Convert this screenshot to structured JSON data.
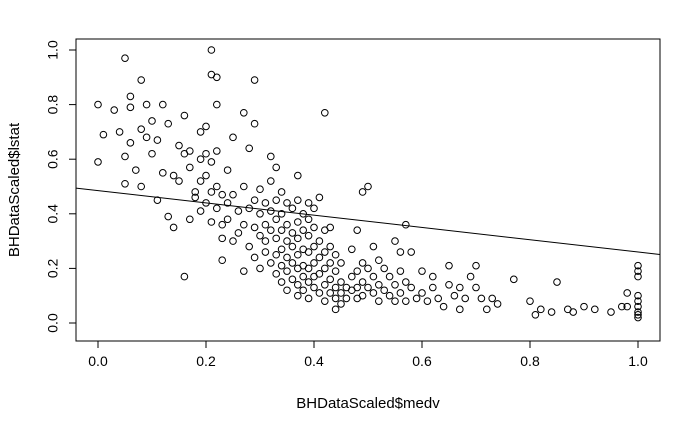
{
  "chart_data": {
    "type": "scatter",
    "title": "",
    "xlabel": "BHDataScaled$medv",
    "ylabel": "BHDataScaled$lstat",
    "xlim": [
      0.0,
      1.0
    ],
    "ylim": [
      0.0,
      1.0
    ],
    "x_ticks": [
      "0.0",
      "0.2",
      "0.4",
      "0.6",
      "0.8",
      "1.0"
    ],
    "y_ticks": [
      "0.0",
      "0.2",
      "0.4",
      "0.6",
      "0.8",
      "1.0"
    ],
    "grid": false,
    "legend": "none",
    "point_style": "open-circle",
    "point_color": "#000000",
    "line_color": "#000000",
    "regression_line": {
      "x": [
        0.0,
        1.0
      ],
      "y": [
        0.485,
        0.26
      ]
    },
    "points": [
      [
        0.0,
        0.8
      ],
      [
        0.0,
        0.59
      ],
      [
        0.01,
        0.69
      ],
      [
        0.03,
        0.78
      ],
      [
        0.04,
        0.7
      ],
      [
        0.05,
        0.97
      ],
      [
        0.05,
        0.51
      ],
      [
        0.05,
        0.61
      ],
      [
        0.06,
        0.83
      ],
      [
        0.06,
        0.79
      ],
      [
        0.06,
        0.66
      ],
      [
        0.07,
        0.56
      ],
      [
        0.08,
        0.89
      ],
      [
        0.08,
        0.71
      ],
      [
        0.08,
        0.5
      ],
      [
        0.09,
        0.68
      ],
      [
        0.09,
        0.8
      ],
      [
        0.1,
        0.74
      ],
      [
        0.1,
        0.62
      ],
      [
        0.11,
        0.45
      ],
      [
        0.11,
        0.67
      ],
      [
        0.12,
        0.8
      ],
      [
        0.12,
        0.55
      ],
      [
        0.13,
        0.39
      ],
      [
        0.13,
        0.73
      ],
      [
        0.14,
        0.54
      ],
      [
        0.14,
        0.35
      ],
      [
        0.15,
        0.65
      ],
      [
        0.15,
        0.52
      ],
      [
        0.16,
        0.76
      ],
      [
        0.16,
        0.62
      ],
      [
        0.16,
        0.17
      ],
      [
        0.17,
        0.63
      ],
      [
        0.17,
        0.38
      ],
      [
        0.17,
        0.57
      ],
      [
        0.18,
        0.48
      ],
      [
        0.18,
        0.46
      ],
      [
        0.19,
        0.52
      ],
      [
        0.19,
        0.6
      ],
      [
        0.19,
        0.7
      ],
      [
        0.19,
        0.41
      ],
      [
        0.2,
        0.62
      ],
      [
        0.2,
        0.54
      ],
      [
        0.2,
        0.72
      ],
      [
        0.2,
        0.44
      ],
      [
        0.21,
        1.0
      ],
      [
        0.21,
        0.91
      ],
      [
        0.21,
        0.59
      ],
      [
        0.21,
        0.48
      ],
      [
        0.21,
        0.37
      ],
      [
        0.22,
        0.9
      ],
      [
        0.22,
        0.8
      ],
      [
        0.22,
        0.63
      ],
      [
        0.22,
        0.5
      ],
      [
        0.22,
        0.42
      ],
      [
        0.23,
        0.47
      ],
      [
        0.23,
        0.36
      ],
      [
        0.23,
        0.31
      ],
      [
        0.23,
        0.23
      ],
      [
        0.24,
        0.56
      ],
      [
        0.24,
        0.44
      ],
      [
        0.24,
        0.38
      ],
      [
        0.25,
        0.68
      ],
      [
        0.25,
        0.47
      ],
      [
        0.25,
        0.3
      ],
      [
        0.26,
        0.41
      ],
      [
        0.26,
        0.33
      ],
      [
        0.27,
        0.77
      ],
      [
        0.27,
        0.5
      ],
      [
        0.27,
        0.36
      ],
      [
        0.27,
        0.19
      ],
      [
        0.28,
        0.64
      ],
      [
        0.28,
        0.42
      ],
      [
        0.28,
        0.28
      ],
      [
        0.29,
        0.89
      ],
      [
        0.29,
        0.73
      ],
      [
        0.29,
        0.45
      ],
      [
        0.29,
        0.35
      ],
      [
        0.29,
        0.24
      ],
      [
        0.3,
        0.49
      ],
      [
        0.3,
        0.4
      ],
      [
        0.3,
        0.32
      ],
      [
        0.3,
        0.2
      ],
      [
        0.31,
        0.44
      ],
      [
        0.31,
        0.36
      ],
      [
        0.31,
        0.3
      ],
      [
        0.31,
        0.26
      ],
      [
        0.32,
        0.61
      ],
      [
        0.32,
        0.52
      ],
      [
        0.32,
        0.41
      ],
      [
        0.32,
        0.34
      ],
      [
        0.32,
        0.22
      ],
      [
        0.33,
        0.57
      ],
      [
        0.33,
        0.45
      ],
      [
        0.33,
        0.38
      ],
      [
        0.33,
        0.31
      ],
      [
        0.33,
        0.25
      ],
      [
        0.33,
        0.18
      ],
      [
        0.34,
        0.48
      ],
      [
        0.34,
        0.4
      ],
      [
        0.34,
        0.34
      ],
      [
        0.34,
        0.27
      ],
      [
        0.34,
        0.21
      ],
      [
        0.34,
        0.15
      ],
      [
        0.35,
        0.44
      ],
      [
        0.35,
        0.36
      ],
      [
        0.35,
        0.3
      ],
      [
        0.35,
        0.24
      ],
      [
        0.35,
        0.19
      ],
      [
        0.35,
        0.12
      ],
      [
        0.36,
        0.42
      ],
      [
        0.36,
        0.33
      ],
      [
        0.36,
        0.28
      ],
      [
        0.36,
        0.22
      ],
      [
        0.36,
        0.16
      ],
      [
        0.37,
        0.54
      ],
      [
        0.37,
        0.45
      ],
      [
        0.37,
        0.37
      ],
      [
        0.37,
        0.31
      ],
      [
        0.37,
        0.25
      ],
      [
        0.37,
        0.2
      ],
      [
        0.37,
        0.14
      ],
      [
        0.37,
        0.1
      ],
      [
        0.38,
        0.4
      ],
      [
        0.38,
        0.34
      ],
      [
        0.38,
        0.27
      ],
      [
        0.38,
        0.21
      ],
      [
        0.38,
        0.17
      ],
      [
        0.38,
        0.12
      ],
      [
        0.39,
        0.44
      ],
      [
        0.39,
        0.38
      ],
      [
        0.39,
        0.32
      ],
      [
        0.39,
        0.26
      ],
      [
        0.39,
        0.2
      ],
      [
        0.39,
        0.15
      ],
      [
        0.39,
        0.09
      ],
      [
        0.4,
        0.42
      ],
      [
        0.4,
        0.35
      ],
      [
        0.4,
        0.28
      ],
      [
        0.4,
        0.22
      ],
      [
        0.4,
        0.17
      ],
      [
        0.4,
        0.13
      ],
      [
        0.41,
        0.46
      ],
      [
        0.41,
        0.3
      ],
      [
        0.41,
        0.24
      ],
      [
        0.41,
        0.18
      ],
      [
        0.41,
        0.11
      ],
      [
        0.42,
        0.77
      ],
      [
        0.42,
        0.34
      ],
      [
        0.42,
        0.26
      ],
      [
        0.42,
        0.2
      ],
      [
        0.42,
        0.14
      ],
      [
        0.42,
        0.08
      ],
      [
        0.43,
        0.35
      ],
      [
        0.43,
        0.28
      ],
      [
        0.43,
        0.22
      ],
      [
        0.43,
        0.16
      ],
      [
        0.43,
        0.11
      ],
      [
        0.44,
        0.25
      ],
      [
        0.44,
        0.19
      ],
      [
        0.44,
        0.13
      ],
      [
        0.44,
        0.09
      ],
      [
        0.44,
        0.05
      ],
      [
        0.45,
        0.22
      ],
      [
        0.45,
        0.15
      ],
      [
        0.45,
        0.11
      ],
      [
        0.45,
        0.07
      ],
      [
        0.46,
        0.13
      ],
      [
        0.46,
        0.09
      ],
      [
        0.47,
        0.27
      ],
      [
        0.47,
        0.17
      ],
      [
        0.47,
        0.12
      ],
      [
        0.48,
        0.34
      ],
      [
        0.48,
        0.19
      ],
      [
        0.48,
        0.13
      ],
      [
        0.48,
        0.09
      ],
      [
        0.49,
        0.48
      ],
      [
        0.49,
        0.22
      ],
      [
        0.49,
        0.15
      ],
      [
        0.49,
        0.1
      ],
      [
        0.5,
        0.5
      ],
      [
        0.5,
        0.2
      ],
      [
        0.5,
        0.13
      ],
      [
        0.51,
        0.28
      ],
      [
        0.51,
        0.17
      ],
      [
        0.51,
        0.11
      ],
      [
        0.52,
        0.23
      ],
      [
        0.52,
        0.14
      ],
      [
        0.52,
        0.08
      ],
      [
        0.53,
        0.2
      ],
      [
        0.53,
        0.12
      ],
      [
        0.54,
        0.17
      ],
      [
        0.54,
        0.1
      ],
      [
        0.55,
        0.3
      ],
      [
        0.55,
        0.14
      ],
      [
        0.55,
        0.08
      ],
      [
        0.56,
        0.26
      ],
      [
        0.56,
        0.19
      ],
      [
        0.56,
        0.11
      ],
      [
        0.57,
        0.36
      ],
      [
        0.57,
        0.15
      ],
      [
        0.57,
        0.08
      ],
      [
        0.58,
        0.26
      ],
      [
        0.58,
        0.13
      ],
      [
        0.59,
        0.09
      ],
      [
        0.6,
        0.19
      ],
      [
        0.6,
        0.11
      ],
      [
        0.61,
        0.08
      ],
      [
        0.62,
        0.17
      ],
      [
        0.62,
        0.13
      ],
      [
        0.63,
        0.09
      ],
      [
        0.64,
        0.06
      ],
      [
        0.65,
        0.21
      ],
      [
        0.65,
        0.14
      ],
      [
        0.66,
        0.1
      ],
      [
        0.67,
        0.05
      ],
      [
        0.67,
        0.13
      ],
      [
        0.68,
        0.09
      ],
      [
        0.69,
        0.17
      ],
      [
        0.7,
        0.21
      ],
      [
        0.7,
        0.13
      ],
      [
        0.71,
        0.09
      ],
      [
        0.72,
        0.05
      ],
      [
        0.73,
        0.09
      ],
      [
        0.74,
        0.07
      ],
      [
        0.77,
        0.16
      ],
      [
        0.8,
        0.08
      ],
      [
        0.81,
        0.03
      ],
      [
        0.82,
        0.05
      ],
      [
        0.84,
        0.04
      ],
      [
        0.85,
        0.15
      ],
      [
        0.87,
        0.05
      ],
      [
        0.88,
        0.04
      ],
      [
        0.9,
        0.06
      ],
      [
        0.92,
        0.05
      ],
      [
        0.95,
        0.04
      ],
      [
        0.97,
        0.06
      ],
      [
        0.98,
        0.11
      ],
      [
        0.98,
        0.06
      ],
      [
        1.0,
        0.21
      ],
      [
        1.0,
        0.19
      ],
      [
        1.0,
        0.17
      ],
      [
        1.0,
        0.1
      ],
      [
        1.0,
        0.08
      ],
      [
        1.0,
        0.06
      ],
      [
        1.0,
        0.04
      ],
      [
        1.0,
        0.03
      ],
      [
        1.0,
        0.02
      ]
    ]
  }
}
